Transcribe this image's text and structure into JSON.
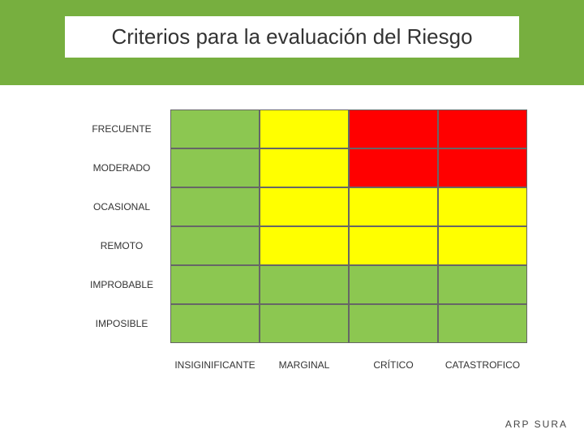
{
  "title": "Criterios para la evaluación del Riesgo",
  "footer": "ARP SURA",
  "colors": {
    "header_band": "#77af3f",
    "title_bg": "#ffffff",
    "title_text": "#333333",
    "label_text": "#333333",
    "cell_border": "#666666",
    "risk": {
      "low": "#8cc751",
      "medium": "#ffff00",
      "high": "#ff0000"
    }
  },
  "matrix": {
    "type": "heatmap",
    "row_labels": [
      "FRECUENTE",
      "MODERADO",
      "OCASIONAL",
      "REMOTO",
      "IMPROBABLE",
      "IMPOSIBLE"
    ],
    "col_labels": [
      "INSIGINIFICANTE",
      "MARGINAL",
      "CRÍTICO",
      "CATASTROFICO"
    ],
    "row_label_fontsize": 12,
    "col_label_fontsize": 12,
    "cells": [
      [
        "low",
        "medium",
        "high",
        "high"
      ],
      [
        "low",
        "medium",
        "high",
        "high"
      ],
      [
        "low",
        "medium",
        "medium",
        "medium"
      ],
      [
        "low",
        "medium",
        "medium",
        "medium"
      ],
      [
        "low",
        "low",
        "low",
        "low"
      ],
      [
        "low",
        "low",
        "low",
        "low"
      ]
    ]
  }
}
